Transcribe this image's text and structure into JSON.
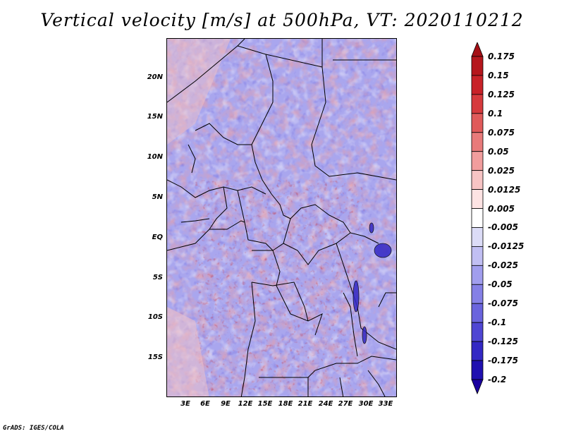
{
  "title": "Vertical velocity [m/s] at 500hPa, VT: 2020110212",
  "footer": "GrADS: IGES/COLA",
  "map": {
    "lat_labels": [
      "20N",
      "15N",
      "10N",
      "5N",
      "EQ",
      "5S",
      "10S",
      "15S"
    ],
    "lon_labels": [
      "3E",
      "6E",
      "9E",
      "12E",
      "15E",
      "18E",
      "21E",
      "24E",
      "27E",
      "30E",
      "33E"
    ]
  },
  "colorbar": {
    "levels": [
      "0.175",
      "0.15",
      "0.125",
      "0.1",
      "0.075",
      "0.05",
      "0.025",
      "0.0125",
      "0.005",
      "-0.005",
      "-0.0125",
      "-0.025",
      "-0.05",
      "-0.075",
      "-0.1",
      "-0.125",
      "-0.175",
      "-0.2"
    ],
    "colors": [
      "#a50f15",
      "#b5161c",
      "#c82228",
      "#d63a3d",
      "#e05a5a",
      "#e87a7a",
      "#f19d9d",
      "#f7c4c4",
      "#fde3e3",
      "#ffffff",
      "#dcdcf7",
      "#c1bff3",
      "#a19eee",
      "#8580e6",
      "#6a64dd",
      "#4f46d3",
      "#3328c4",
      "#2010b0",
      "#1a00a0"
    ]
  }
}
